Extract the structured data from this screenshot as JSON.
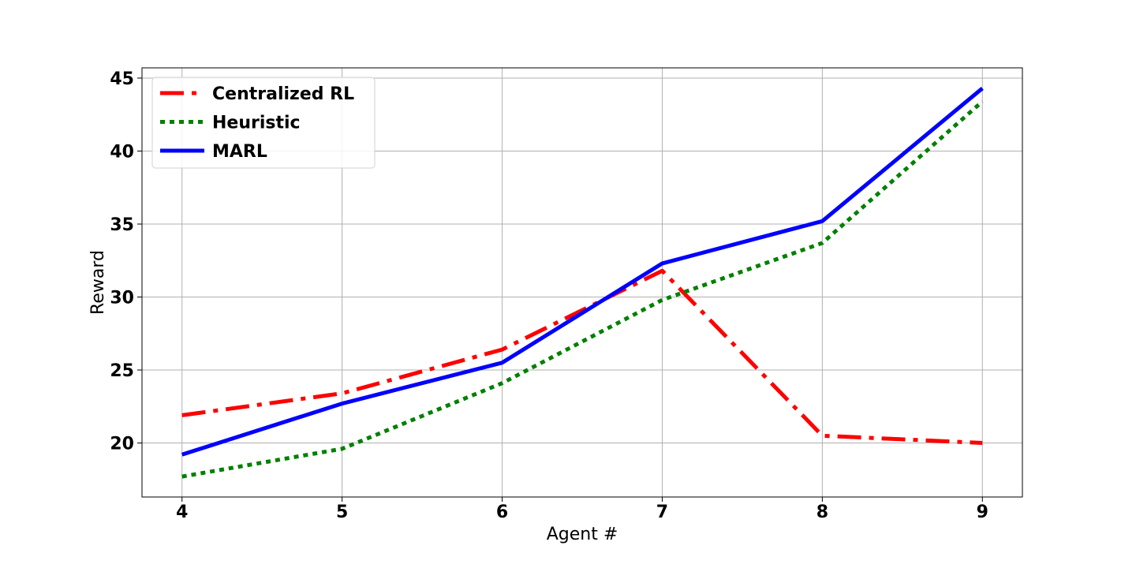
{
  "chart_data": {
    "type": "line",
    "x": [
      4,
      5,
      6,
      7,
      8,
      9
    ],
    "xticks": [
      4,
      5,
      6,
      7,
      8,
      9
    ],
    "yticks": [
      20,
      25,
      30,
      35,
      40,
      45
    ],
    "xlim": [
      3.75,
      9.25
    ],
    "ylim": [
      16.3,
      45.7
    ],
    "xlabel": "Agent #",
    "ylabel": "Reward",
    "grid": true,
    "legend_position": "top-left",
    "series": [
      {
        "name": "Centralized RL",
        "color": "#ff0000",
        "style": "dashdot",
        "values": [
          21.9,
          23.4,
          26.4,
          31.8,
          20.5,
          20.0
        ]
      },
      {
        "name": "Heuristic",
        "color": "#008000",
        "style": "dotted",
        "values": [
          17.7,
          19.6,
          24.1,
          29.8,
          33.7,
          43.4
        ]
      },
      {
        "name": "MARL",
        "color": "#0000ff",
        "style": "solid",
        "values": [
          19.2,
          22.7,
          25.5,
          32.3,
          35.2,
          44.3
        ]
      }
    ]
  }
}
